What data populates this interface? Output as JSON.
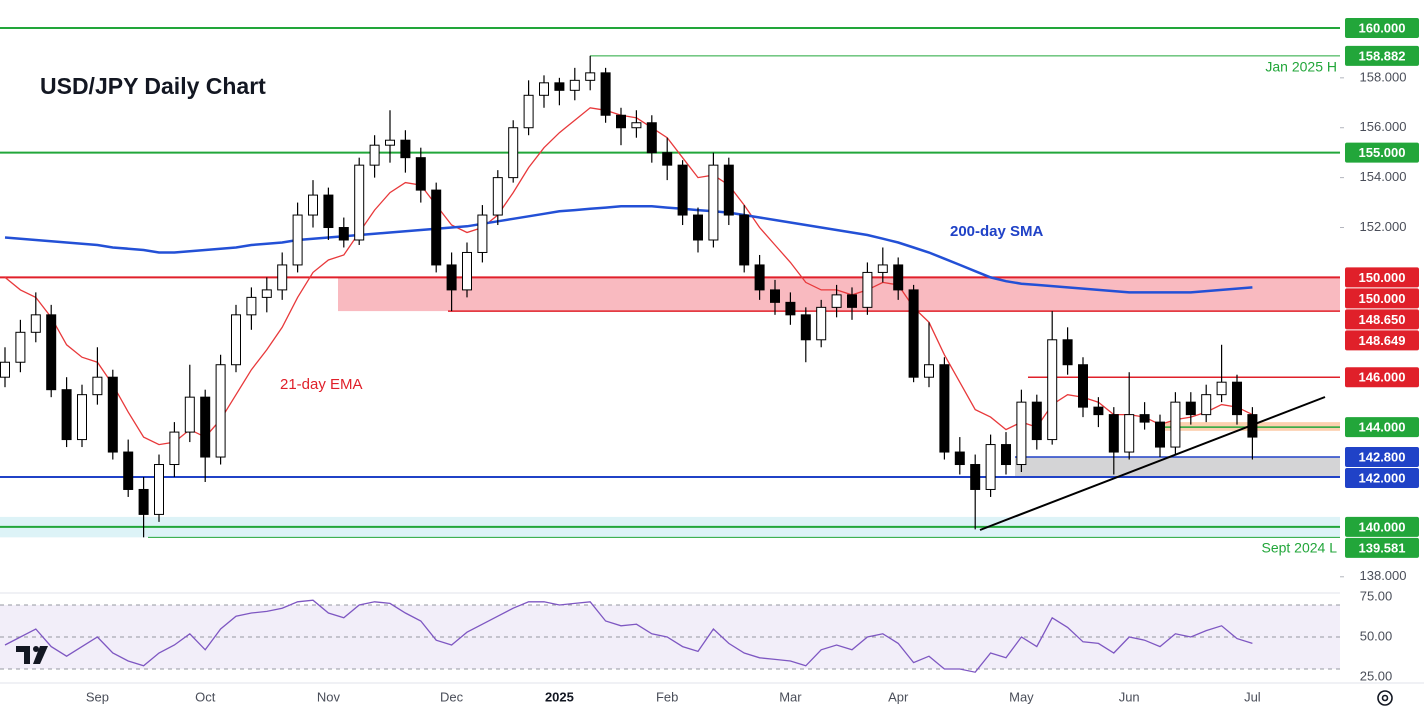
{
  "chart_data": {
    "type": "candlestick",
    "title": "USD/JPY Daily Chart",
    "categories": [
      null,
      null,
      null,
      null,
      null,
      null,
      "Sep",
      null,
      null,
      null,
      null,
      null,
      null,
      "Oct",
      null,
      null,
      null,
      null,
      null,
      null,
      null,
      "Nov",
      null,
      null,
      null,
      null,
      null,
      null,
      null,
      "Dec",
      null,
      null,
      null,
      null,
      null,
      null,
      "2025",
      null,
      null,
      null,
      null,
      null,
      null,
      "Feb",
      null,
      null,
      null,
      null,
      null,
      null,
      null,
      "Mar",
      null,
      null,
      null,
      null,
      null,
      null,
      "Apr",
      null,
      null,
      null,
      null,
      null,
      null,
      null,
      "May",
      null,
      null,
      null,
      null,
      null,
      null,
      "Jun",
      null,
      null,
      null,
      null,
      null,
      null,
      null,
      "Jul"
    ],
    "open": [
      146.0,
      146.6,
      147.8,
      148.5,
      145.5,
      143.5,
      145.3,
      146.0,
      143.0,
      141.5,
      140.5,
      142.5,
      143.8,
      145.2,
      142.8,
      146.5,
      148.5,
      149.2,
      149.5,
      150.5,
      152.5,
      153.3,
      152.0,
      151.5,
      154.5,
      155.3,
      155.5,
      154.8,
      153.5,
      150.5,
      149.5,
      151.0,
      152.5,
      154.0,
      156.0,
      157.3,
      157.8,
      157.5,
      157.9,
      158.2,
      156.5,
      156.0,
      156.2,
      155.0,
      154.5,
      152.5,
      151.5,
      154.5,
      152.5,
      150.5,
      149.5,
      149.0,
      148.5,
      147.5,
      148.8,
      149.3,
      148.8,
      150.2,
      150.5,
      149.5,
      146.0,
      146.5,
      143.0,
      142.5,
      141.5,
      143.3,
      142.5,
      145.0,
      143.5,
      147.5,
      146.5,
      144.8,
      144.5,
      143.0,
      144.5,
      144.2,
      143.2,
      145.0,
      144.5,
      145.3,
      145.8,
      144.5
    ],
    "high": [
      147.2,
      148.3,
      149.4,
      148.9,
      146.0,
      145.7,
      147.2,
      146.3,
      143.5,
      142.0,
      142.9,
      144.2,
      146.5,
      145.5,
      146.9,
      148.9,
      149.6,
      150.0,
      151.0,
      153.0,
      153.9,
      153.6,
      152.4,
      154.8,
      155.7,
      156.7,
      155.9,
      155.2,
      153.8,
      151.0,
      151.4,
      152.9,
      154.3,
      156.3,
      157.9,
      158.1,
      158.0,
      158.4,
      158.882,
      158.4,
      156.8,
      156.7,
      156.5,
      155.6,
      154.7,
      152.8,
      155.0,
      154.8,
      152.9,
      150.9,
      149.9,
      149.4,
      148.8,
      149.1,
      149.7,
      149.6,
      150.6,
      151.2,
      150.8,
      149.7,
      148.2,
      146.8,
      143.6,
      142.9,
      143.7,
      143.8,
      145.5,
      145.3,
      148.65,
      148.0,
      146.8,
      145.2,
      144.8,
      146.2,
      145.0,
      144.5,
      145.4,
      145.4,
      145.7,
      147.3,
      146.1,
      144.8
    ],
    "low": [
      145.6,
      146.2,
      147.4,
      145.2,
      143.2,
      143.2,
      144.9,
      142.7,
      141.2,
      139.581,
      140.2,
      142.0,
      143.4,
      141.8,
      142.5,
      146.2,
      147.9,
      148.6,
      149.1,
      150.2,
      152.0,
      151.5,
      151.2,
      151.3,
      154.0,
      154.6,
      154.2,
      153.0,
      150.2,
      148.65,
      149.2,
      150.6,
      152.1,
      153.8,
      155.7,
      156.8,
      156.9,
      157.1,
      157.5,
      156.2,
      155.3,
      155.6,
      154.6,
      153.9,
      152.1,
      151.0,
      151.2,
      152.1,
      150.2,
      149.1,
      148.5,
      148.1,
      146.6,
      147.2,
      148.4,
      148.3,
      148.5,
      149.8,
      149.1,
      145.8,
      145.6,
      142.7,
      142.1,
      139.9,
      141.2,
      142.1,
      142.2,
      143.1,
      143.3,
      146.1,
      144.4,
      144.0,
      142.1,
      142.7,
      143.9,
      142.8,
      142.9,
      144.1,
      144.2,
      145.0,
      144.1,
      142.7
    ],
    "close": [
      146.6,
      147.8,
      148.5,
      145.5,
      143.5,
      145.3,
      146.0,
      143.0,
      141.5,
      140.5,
      142.5,
      143.8,
      145.2,
      142.8,
      146.5,
      148.5,
      149.2,
      149.5,
      150.5,
      152.5,
      153.3,
      152.0,
      151.5,
      154.5,
      155.3,
      155.5,
      154.8,
      153.5,
      150.5,
      149.5,
      151.0,
      152.5,
      154.0,
      156.0,
      157.3,
      157.8,
      157.5,
      157.9,
      158.2,
      156.5,
      156.0,
      156.2,
      155.0,
      154.5,
      152.5,
      151.5,
      154.5,
      152.5,
      150.5,
      149.5,
      149.0,
      148.5,
      147.5,
      148.8,
      149.3,
      148.8,
      150.2,
      150.5,
      149.5,
      146.0,
      146.5,
      143.0,
      142.5,
      141.5,
      143.3,
      142.5,
      145.0,
      143.5,
      147.5,
      146.5,
      144.8,
      144.5,
      143.0,
      144.5,
      144.2,
      143.2,
      145.0,
      144.5,
      145.3,
      145.8,
      144.5,
      143.6
    ],
    "up_color": "#ffffff",
    "down_color": "#000000",
    "series": [
      {
        "name": "21-day EMA",
        "color": "#e8393b",
        "values": [
          150.0,
          149.5,
          149.2,
          148.4,
          147.3,
          146.8,
          146.6,
          145.7,
          144.6,
          143.6,
          143.3,
          143.4,
          143.9,
          143.6,
          144.3,
          145.3,
          146.3,
          147.1,
          148.0,
          149.2,
          150.2,
          150.7,
          150.9,
          151.8,
          152.7,
          153.4,
          153.8,
          153.7,
          152.9,
          152.1,
          151.8,
          152.0,
          152.5,
          153.4,
          154.4,
          155.2,
          155.8,
          156.3,
          156.8,
          156.7,
          156.5,
          156.4,
          156.0,
          155.6,
          154.8,
          154.0,
          154.1,
          153.7,
          152.9,
          152.0,
          151.3,
          150.6,
          149.8,
          149.5,
          149.5,
          149.3,
          149.5,
          149.8,
          149.7,
          148.8,
          148.2,
          146.9,
          145.8,
          144.7,
          144.4,
          143.9,
          144.2,
          144.0,
          144.9,
          145.3,
          145.2,
          145.0,
          144.5,
          144.5,
          144.4,
          144.1,
          144.3,
          144.4,
          144.6,
          144.9,
          144.8,
          144.5
        ]
      },
      {
        "name": "200-day SMA",
        "color": "#2350d6",
        "values": [
          151.6,
          151.55,
          151.5,
          151.45,
          151.4,
          151.35,
          151.3,
          151.2,
          151.15,
          151.1,
          151.0,
          151.0,
          151.05,
          151.1,
          151.15,
          151.2,
          151.3,
          151.35,
          151.4,
          151.5,
          151.55,
          151.6,
          151.65,
          151.7,
          151.75,
          151.8,
          151.85,
          151.9,
          151.95,
          152.0,
          152.05,
          152.15,
          152.25,
          152.35,
          152.45,
          152.55,
          152.65,
          152.7,
          152.75,
          152.8,
          152.85,
          152.85,
          152.85,
          152.8,
          152.75,
          152.7,
          152.65,
          152.6,
          152.5,
          152.4,
          152.3,
          152.2,
          152.1,
          152.0,
          151.9,
          151.8,
          151.7,
          151.55,
          151.4,
          151.2,
          151.0,
          150.75,
          150.5,
          150.25,
          150.0,
          149.85,
          149.75,
          149.7,
          149.65,
          149.6,
          149.55,
          149.5,
          149.45,
          149.4,
          149.4,
          149.4,
          149.4,
          149.4,
          149.45,
          149.5,
          149.55,
          149.6
        ]
      }
    ],
    "ylim": [
      137.35,
      161.12
    ],
    "yticks": [
      {
        "value": 138,
        "label": "138.000"
      },
      {
        "value": 152,
        "label": "152.000"
      },
      {
        "value": 154,
        "label": "154.000"
      },
      {
        "value": 156,
        "label": "156.000"
      },
      {
        "value": 158,
        "label": "158.000"
      }
    ],
    "levels": [
      {
        "value": 160,
        "label": "160.000",
        "color": "#22a63a"
      },
      {
        "value": 158.882,
        "label": "158.882",
        "color": "#22a63a"
      },
      {
        "value": 155,
        "label": "155.000",
        "color": "#22a63a"
      },
      {
        "value": 150,
        "label": "150.000",
        "color": "#e0202a"
      },
      {
        "value": 150,
        "label": "150.000",
        "color": "#e0202a"
      },
      {
        "value": 148.65,
        "label": "148.650",
        "color": "#e0202a"
      },
      {
        "value": 148.649,
        "label": "148.649",
        "color": "#e0202a"
      },
      {
        "value": 146,
        "label": "146.000",
        "color": "#e0202a"
      },
      {
        "value": 144,
        "label": "144.000",
        "color": "#22a63a"
      },
      {
        "value": 142.8,
        "label": "142.800",
        "color": "#2042c7"
      },
      {
        "value": 142,
        "label": "142.000",
        "color": "#2042c7"
      },
      {
        "value": 140,
        "label": "140.000",
        "color": "#22a63a"
      },
      {
        "value": 139.581,
        "label": "139.581",
        "color": "#22a63a"
      }
    ],
    "level_notes": [
      "Jan 2025 H",
      "Sept 2024 L"
    ],
    "zones": [
      {
        "low": 148.65,
        "high": 150,
        "color": "rgba(240,90,105,0.42)"
      },
      {
        "low": 143.85,
        "high": 144.2,
        "color": "rgba(247,170,110,0.55)"
      },
      {
        "low": 142,
        "high": 142.8,
        "color": "rgba(160,160,165,0.45)"
      },
      {
        "low": 139.581,
        "high": 140.4,
        "color": "rgba(170,225,235,0.4)"
      }
    ],
    "rsi": {
      "color": "#7e57c2",
      "ylim": [
        21.25,
        77.5
      ],
      "yticks": [
        {
          "value": 75,
          "label": "75.00"
        },
        {
          "value": 50,
          "label": "50.00"
        },
        {
          "value": 25,
          "label": "25.00"
        }
      ],
      "band": [
        30,
        70
      ],
      "lines": [
        30,
        50,
        70
      ],
      "values": [
        45,
        50,
        55,
        44,
        38,
        44,
        50,
        40,
        35,
        32,
        40,
        45,
        52,
        42,
        55,
        63,
        65,
        66,
        68,
        72,
        73,
        65,
        62,
        70,
        72,
        71,
        65,
        60,
        48,
        45,
        53,
        58,
        63,
        68,
        72,
        72,
        70,
        71,
        72,
        60,
        57,
        58,
        52,
        50,
        44,
        41,
        55,
        46,
        40,
        37,
        36,
        35,
        32,
        42,
        45,
        42,
        50,
        52,
        46,
        34,
        38,
        30,
        30,
        28,
        40,
        37,
        50,
        44,
        62,
        56,
        47,
        46,
        40,
        50,
        48,
        44,
        52,
        50,
        54,
        57,
        49,
        46
      ]
    }
  }
}
